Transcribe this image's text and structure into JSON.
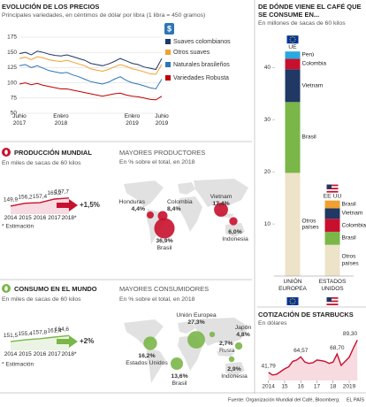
{
  "chart_data": [
    {
      "type": "line",
      "title": "EVOLUCIÓN DE LOS PRECIOS",
      "subtitle": "Principales variedades, en céntimos de dólar por libra (1 libra = 450 gramos)",
      "currency_icon": "$",
      "categories": [
        "Junio 2017",
        null,
        null,
        null,
        null,
        null,
        null,
        "Enero 2018",
        null,
        null,
        null,
        null,
        null,
        null,
        null,
        null,
        null,
        null,
        null,
        "Enero 2019",
        null,
        null,
        null,
        null,
        "Junio 2019"
      ],
      "series": [
        {
          "name": "Suaves colombianos",
          "color": "#1f3864",
          "values": [
            148,
            150,
            146,
            152,
            150,
            147,
            145,
            144,
            146,
            143,
            140,
            137,
            132,
            130,
            128,
            131,
            135,
            140,
            136,
            132,
            130,
            126,
            124,
            122,
            140
          ]
        },
        {
          "name": "Otros suaves",
          "color": "#f0a030",
          "values": [
            140,
            142,
            138,
            143,
            141,
            138,
            136,
            135,
            137,
            134,
            131,
            128,
            123,
            121,
            119,
            122,
            126,
            130,
            127,
            123,
            121,
            118,
            115,
            114,
            130
          ]
        },
        {
          "name": "Naturales brasileños",
          "color": "#2e75b6",
          "values": [
            128,
            130,
            125,
            128,
            124,
            120,
            118,
            116,
            117,
            113,
            110,
            106,
            102,
            100,
            98,
            101,
            106,
            110,
            104,
            100,
            98,
            95,
            92,
            90,
            106
          ]
        },
        {
          "name": "Variedades Robusta",
          "color": "#c00000",
          "values": [
            98,
            100,
            97,
            99,
            96,
            94,
            92,
            90,
            90,
            88,
            86,
            84,
            82,
            80,
            78,
            80,
            82,
            83,
            80,
            78,
            77,
            75,
            73,
            72,
            78
          ]
        }
      ],
      "ylim": [
        50,
        175
      ],
      "yticks": [
        50,
        75,
        100,
        125,
        150,
        175
      ],
      "grid": true,
      "legend": "right"
    },
    {
      "type": "line",
      "title": "PRODUCCIÓN MUNDIAL",
      "subtitle": "En miles de sacas de 60 kilos",
      "categories": [
        "2014",
        "2015",
        "2016",
        "2017",
        "2018*"
      ],
      "values": [
        149.9,
        156.2,
        157.4,
        165.2,
        167.7
      ],
      "value_labels": [
        "149,9",
        "156,2",
        "157,4",
        "165,2",
        "167,7"
      ],
      "color": "#c8102e",
      "ylim": [
        140,
        175
      ],
      "annotation": "+1,5%",
      "footnote": "* Estimación"
    },
    {
      "type": "bubble-map",
      "title": "MAYORES PRODUCTORES",
      "subtitle": "En % sobre el total, en 2018",
      "categories": [
        "Honduras",
        "Colombia",
        "Brasil",
        "Vietnam",
        "Indonesia"
      ],
      "values": [
        4.4,
        8.4,
        36.9,
        17.4,
        6.0
      ],
      "value_labels": [
        "4,4%",
        "8,4%",
        "36,9%",
        "17,4%",
        "6,0%"
      ],
      "color": "#c8102e"
    },
    {
      "type": "line",
      "title": "CONSUMO EN EL MUNDO",
      "subtitle": "En miles de sacas de 60 kilos",
      "categories": [
        "2014",
        "2015",
        "2016",
        "2017",
        "2018*"
      ],
      "values": [
        151.5,
        155.4,
        157.8,
        161.4,
        164.6
      ],
      "value_labels": [
        "151,5",
        "155,4",
        "157,8",
        "161,4",
        "164,6"
      ],
      "color": "#7ab648",
      "ylim": [
        140,
        175
      ],
      "annotation": "+2%",
      "footnote": "* Estimación"
    },
    {
      "type": "bubble-map",
      "title": "MAYORES CONSUMIDORES",
      "subtitle": "En % sobre el total, en 2018",
      "categories": [
        "Unión Europea",
        "Estados Unidos",
        "Brasil",
        "Japón",
        "Rusia",
        "Indonesia"
      ],
      "values": [
        27.3,
        16.2,
        13.6,
        4.8,
        2.7,
        2.9
      ],
      "value_labels": [
        "27,3%",
        "16,2%",
        "13,6%",
        "4,8%",
        "2,7%",
        "2,9%"
      ],
      "color": "#7ab648"
    },
    {
      "type": "stacked-bar",
      "title": "DE DÓNDE VIENE EL CAFÉ QUE SE CONSUME EN...",
      "subtitle": "En millones de sacas de 60 kilos",
      "categories": [
        "UNIÓN EUROPEA",
        "ESTADOS UNIDOS"
      ],
      "ylim": [
        0,
        45
      ],
      "yticks": [
        10,
        20,
        30,
        40
      ],
      "bars": [
        {
          "name": "UE",
          "segments": [
            {
              "label": "Otros países",
              "color": "#ece3c8",
              "value": 19.8
            },
            {
              "label": "Brasil",
              "color": "#7ab648",
              "value": 13.6
            },
            {
              "label": "Vietnam",
              "color": "#1f3864",
              "value": 6.3
            },
            {
              "label": "Colombia",
              "color": "#c8102e",
              "value": 2
            },
            {
              "label": "Perú",
              "color": "#29a9e0",
              "value": 1.4
            }
          ]
        },
        {
          "name": "EE UU",
          "segments": [
            {
              "label": "Otros países",
              "color": "#ece3c8",
              "value": 6
            },
            {
              "label": "Brasil",
              "color": "#7ab648",
              "value": 2.5
            },
            {
              "label": "Colombia",
              "color": "#c8102e",
              "value": 2.5
            },
            {
              "label": "Vietnam",
              "color": "#1f3864",
              "value": 2
            },
            {
              "label": "Brasil",
              "color": "#f0a030",
              "value": 1.5
            }
          ]
        }
      ]
    },
    {
      "type": "line",
      "title": "COTIZACIÓN DE STARBUCKS",
      "subtitle": "En dólares",
      "x": [
        2014.0,
        2014.25,
        2014.5,
        2014.75,
        2015.0,
        2015.25,
        2015.5,
        2015.75,
        2016.0,
        2016.25,
        2016.5,
        2016.75,
        2017.0,
        2017.25,
        2017.5,
        2017.75,
        2018.0,
        2018.25,
        2018.5,
        2018.75,
        2019.0,
        2019.25,
        2019.5
      ],
      "values": [
        41.79,
        38,
        39,
        43,
        47,
        50,
        58,
        60,
        64.57,
        57,
        55,
        56,
        60,
        59,
        58,
        55,
        57,
        68.7,
        52,
        58,
        64,
        77,
        89.3
      ],
      "value_labels": [
        "41,79",
        null,
        null,
        null,
        null,
        null,
        null,
        null,
        "64,57",
        null,
        null,
        null,
        null,
        null,
        null,
        null,
        null,
        "68,70",
        null,
        null,
        null,
        null,
        "89,30"
      ],
      "color": "#c8102e",
      "xlim": [
        2013.8,
        2019.6
      ],
      "ylim": [
        30,
        100
      ],
      "xticks": [
        2014,
        {
          "value": 2015,
          "label": "15"
        },
        {
          "value": 2016,
          "label": "16"
        },
        {
          "value": 2017,
          "label": "17"
        },
        {
          "value": 2018,
          "label": "18"
        },
        2019
      ]
    }
  ],
  "source": "Fuente: Organización Mundial del Café, Bloomberg.",
  "brand": "EL PAÍS"
}
